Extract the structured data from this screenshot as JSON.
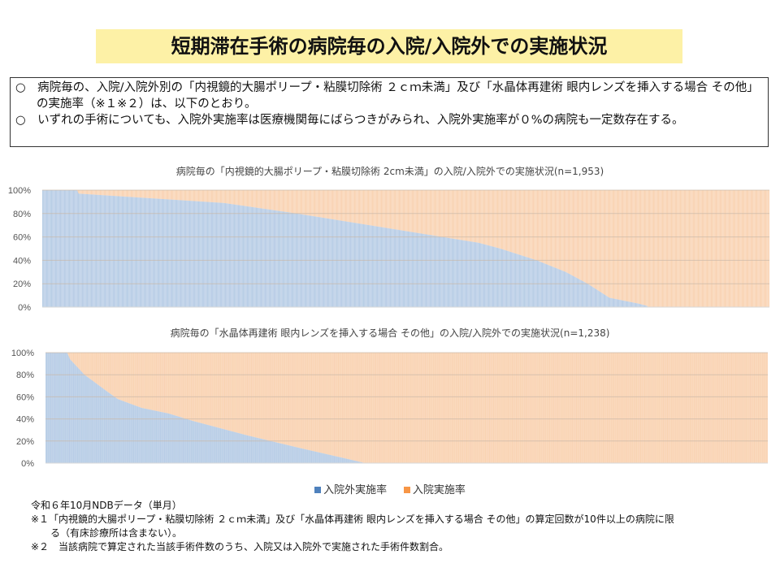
{
  "title": "短期滞在手術の病院毎の入院/入院外での実施状況",
  "bullets": [
    "○　病院毎の、入院/入院外別の「内視鏡的大腸ポリープ・粘膜切除術 ２ｃｍ未満」及び「水晶体再建術 眼内レンズを挿入する場合 その他」の実施率（※１※２）は、以下のとおり。",
    "○　いずれの手術についても、入院外実施率は医療機関毎にばらつきがみられ、入院外実施率が０%の病院も一定数存在する。"
  ],
  "chart_data": [
    {
      "type": "bar",
      "stacked": true,
      "title": "病院毎の「内視鏡的大腸ポリープ・粘膜切除術 2cm未満」の入院/入院外での実施状況(n=1,953)",
      "n": 1953,
      "yticks": [
        "0%",
        "20%",
        "40%",
        "60%",
        "80%",
        "100%"
      ],
      "ylim": [
        0,
        100
      ],
      "series": [
        {
          "name": "入院外実施率",
          "color": "#b8cde6"
        },
        {
          "name": "入院実施率",
          "color": "#f9d3b3"
        }
      ],
      "outpatient_curve_rank_pct_vs_value": [
        [
          0,
          100
        ],
        [
          4.8,
          100
        ],
        [
          5,
          97
        ],
        [
          15,
          93
        ],
        [
          25,
          89
        ],
        [
          35,
          80
        ],
        [
          45,
          70
        ],
        [
          55,
          60
        ],
        [
          60,
          55
        ],
        [
          63,
          50
        ],
        [
          65,
          46
        ],
        [
          68,
          40
        ],
        [
          72,
          30
        ],
        [
          75,
          20
        ],
        [
          78,
          8
        ],
        [
          82,
          3
        ],
        [
          83.2,
          1
        ],
        [
          83.3,
          0
        ],
        [
          100,
          0
        ]
      ]
    },
    {
      "type": "bar",
      "stacked": true,
      "title": "病院毎の「水晶体再建術 眼内レンズを挿入する場合 その他」の入院/入院外での実施状況(n=1,238)",
      "n": 1238,
      "yticks": [
        "0%",
        "20%",
        "40%",
        "60%",
        "80%",
        "100%"
      ],
      "ylim": [
        0,
        100
      ],
      "series": [
        {
          "name": "入院外実施率",
          "color": "#b8cde6"
        },
        {
          "name": "入院実施率",
          "color": "#f9d3b3"
        }
      ],
      "outpatient_curve_rank_pct_vs_value": [
        [
          0,
          100
        ],
        [
          3,
          100
        ],
        [
          3.4,
          94
        ],
        [
          5.4,
          80
        ],
        [
          8.5,
          65
        ],
        [
          10,
          58
        ],
        [
          13.3,
          50
        ],
        [
          17,
          45
        ],
        [
          20.5,
          38
        ],
        [
          28,
          25
        ],
        [
          35,
          14
        ],
        [
          41,
          5
        ],
        [
          44.3,
          0
        ],
        [
          100,
          0
        ]
      ]
    }
  ],
  "legend": [
    "入院外実施率",
    "入院実施率"
  ],
  "legend_colors": [
    "#4f81bd",
    "#f79646"
  ],
  "footnotes": [
    "令和６年10月NDBデータ（単月）",
    "※１「内視鏡的大腸ポリープ・粘膜切除術 ２ｃｍ未満」及び「水晶体再建術 眼内レンズを挿入する場合 その他」の算定回数が10件以上の病院に限",
    "　　る（有床診療所は含まない）。",
    "※２　当該病院で算定された当該手術件数のうち、入院又は入院外で実施された手術件数割合。"
  ]
}
